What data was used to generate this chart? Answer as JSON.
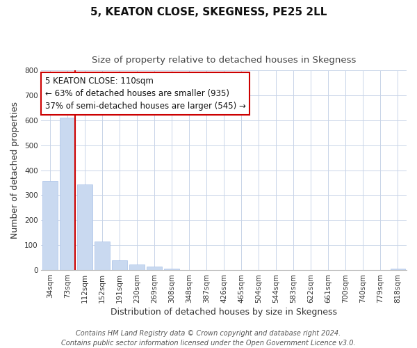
{
  "title": "5, KEATON CLOSE, SKEGNESS, PE25 2LL",
  "subtitle": "Size of property relative to detached houses in Skegness",
  "xlabel": "Distribution of detached houses by size in Skegness",
  "ylabel": "Number of detached properties",
  "bar_labels": [
    "34sqm",
    "73sqm",
    "112sqm",
    "152sqm",
    "191sqm",
    "230sqm",
    "269sqm",
    "308sqm",
    "348sqm",
    "387sqm",
    "426sqm",
    "465sqm",
    "504sqm",
    "544sqm",
    "583sqm",
    "622sqm",
    "661sqm",
    "700sqm",
    "740sqm",
    "779sqm",
    "818sqm"
  ],
  "bar_values": [
    357,
    612,
    343,
    114,
    40,
    22,
    14,
    5,
    0,
    0,
    0,
    0,
    0,
    0,
    0,
    0,
    0,
    0,
    0,
    0,
    5
  ],
  "subject_bar_index": 2,
  "bar_color_normal": "#c9d9f0",
  "bar_edge_color": "#a8c0e8",
  "highlight_line_color": "#cc0000",
  "annotation_box_text": "5 KEATON CLOSE: 110sqm\n← 63% of detached houses are smaller (935)\n37% of semi-detached houses are larger (545) →",
  "ylim": [
    0,
    800
  ],
  "yticks": [
    0,
    100,
    200,
    300,
    400,
    500,
    600,
    700,
    800
  ],
  "footer_line1": "Contains HM Land Registry data © Crown copyright and database right 2024.",
  "footer_line2": "Contains public sector information licensed under the Open Government Licence v3.0.",
  "background_color": "#ffffff",
  "grid_color": "#c8d4e8",
  "title_fontsize": 11,
  "subtitle_fontsize": 9.5,
  "axis_label_fontsize": 9,
  "tick_fontsize": 7.5,
  "footer_fontsize": 7,
  "annotation_fontsize": 8.5
}
